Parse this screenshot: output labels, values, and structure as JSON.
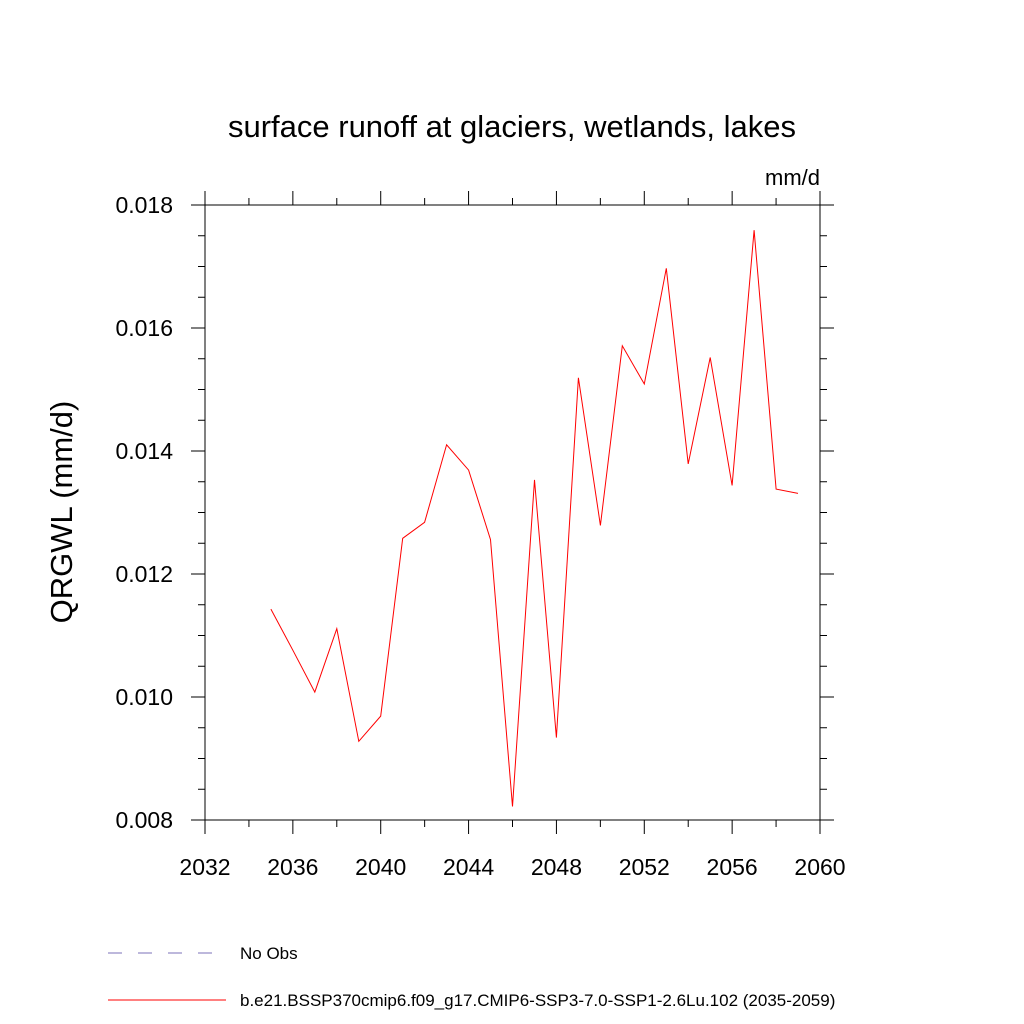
{
  "chart_data": {
    "type": "line",
    "title": "surface runoff at glaciers, wetlands, lakes",
    "units": "mm/d",
    "ylabel": "QRGWL  (mm/d)",
    "xlabel": "",
    "xlim": [
      2032,
      2060
    ],
    "ylim": [
      0.008,
      0.018
    ],
    "x_ticks": [
      2032,
      2036,
      2040,
      2044,
      2048,
      2052,
      2056,
      2060
    ],
    "x_tick_labels": [
      "2032",
      "2036",
      "2040",
      "2044",
      "2048",
      "2052",
      "2056",
      "2060"
    ],
    "x_minor_step": 2,
    "y_ticks": [
      0.008,
      0.01,
      0.012,
      0.014,
      0.016,
      0.018
    ],
    "y_tick_labels": [
      "0.008",
      "0.010",
      "0.012",
      "0.014",
      "0.016",
      "0.018"
    ],
    "y_minor_step": 0.0005,
    "grid": false,
    "legend_position": "bottom",
    "series": [
      {
        "name": "b.e21.BSSP370cmip6.f09_g17.CMIP6-SSP3-7.0-SSP1-2.6Lu.102 (2035-2059)",
        "color": "#ff0000",
        "style": "solid",
        "x": [
          2035,
          2036,
          2037,
          2038,
          2039,
          2040,
          2041,
          2042,
          2043,
          2044,
          2045,
          2046,
          2047,
          2048,
          2049,
          2050,
          2051,
          2052,
          2053,
          2054,
          2055,
          2056,
          2057,
          2058,
          2059
        ],
        "y": [
          0.01143,
          0.01076,
          0.01008,
          0.01111,
          0.00928,
          0.00969,
          0.01258,
          0.01284,
          0.0141,
          0.01369,
          0.01256,
          0.00822,
          0.01353,
          0.00934,
          0.01519,
          0.01279,
          0.01571,
          0.01509,
          0.01697,
          0.01379,
          0.01552,
          0.01344,
          0.01759,
          0.01338,
          0.01331
        ]
      }
    ],
    "legend": [
      {
        "label": "No Obs",
        "color": "#7b72b8",
        "style": "dashed"
      },
      {
        "label": "b.e21.BSSP370cmip6.f09_g17.CMIP6-SSP3-7.0-SSP1-2.6Lu.102 (2035-2059)",
        "color": "#ff0000",
        "style": "solid"
      }
    ]
  }
}
